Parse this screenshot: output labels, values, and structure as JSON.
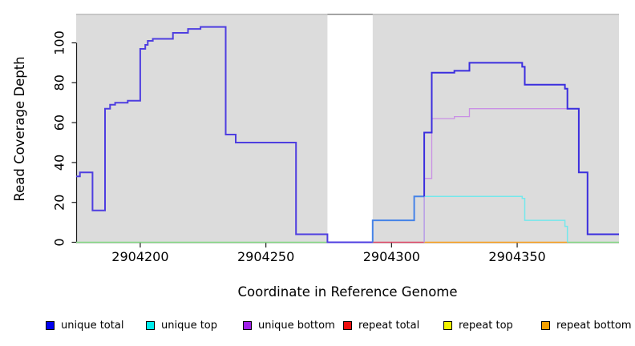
{
  "chart_data": {
    "type": "line",
    "subtype": "step-coverage-plot",
    "title": "",
    "xlabel": "Coordinate in Reference Genome",
    "ylabel": "Read Coverage Depth",
    "xlim": [
      2904174.5,
      2904390.5
    ],
    "ylim": [
      0,
      114
    ],
    "x_ticks": [
      2904200,
      2904250,
      2904300,
      2904350
    ],
    "x_tick_labels": [
      "2904200",
      "2904250",
      "2904300",
      "2904350"
    ],
    "y_ticks": [
      0,
      20,
      40,
      60,
      80,
      100
    ],
    "y_tick_labels": [
      "0",
      "20",
      "40",
      "60",
      "80",
      "100"
    ],
    "grid": false,
    "plot_background": "#dcdcdc",
    "gap_region": {
      "x_start": 2904274.5,
      "x_end": 2904292.5,
      "color": "#ffffff",
      "note": "white vertical band, no gray background"
    },
    "series": [
      {
        "name": "zero-coverage overlap left (appears green)",
        "color": "#85d985",
        "width": 1.5,
        "points": [
          [
            2904174.5,
            0
          ]
        ],
        "end_x": 2904274.5
      },
      {
        "name": "zero-coverage overlap right (appears green)",
        "color": "#85d985",
        "width": 1.5,
        "points": [
          [
            2904370,
            0
          ]
        ],
        "end_x": 2904390.5
      },
      {
        "name": "repeat total",
        "color": "#e04868",
        "width": 1.4,
        "points": [
          [
            2904292.5,
            0
          ]
        ],
        "end_x": 2904313
      },
      {
        "name": "repeat bottom",
        "color": "#fba01e",
        "width": 1.6,
        "points": [
          [
            2904313,
            0
          ]
        ],
        "end_x": 2904370
      },
      {
        "name": "unique top",
        "color": "#74e8ec",
        "width": 1.5,
        "points": [
          [
            2904313,
            0
          ],
          [
            2904313,
            23
          ],
          [
            2904352,
            22
          ],
          [
            2904353,
            11
          ],
          [
            2904369,
            8
          ],
          [
            2904370,
            0
          ]
        ],
        "end_x": 2904370
      },
      {
        "name": "unique bottom",
        "color": "#c98fe5",
        "width": 1.3,
        "points": [
          [
            2904313,
            0
          ],
          [
            2904313,
            32
          ],
          [
            2904316,
            62
          ],
          [
            2904325,
            63
          ],
          [
            2904331,
            67
          ]
        ],
        "end_x": 2904374.5
      },
      {
        "name": "unique total (left of gap)",
        "color": "#4e3ee0",
        "width": 2,
        "points": [
          [
            2904174.5,
            33
          ],
          [
            2904176,
            35
          ],
          [
            2904181,
            16
          ],
          [
            2904186,
            67
          ],
          [
            2904188,
            69
          ],
          [
            2904190,
            70
          ],
          [
            2904195,
            71
          ],
          [
            2904200,
            97
          ],
          [
            2904202,
            99
          ],
          [
            2904203,
            101
          ],
          [
            2904205,
            102
          ],
          [
            2904213,
            105
          ],
          [
            2904219,
            107
          ],
          [
            2904224,
            108
          ],
          [
            2904234,
            54
          ],
          [
            2904238,
            50
          ],
          [
            2904262,
            4
          ],
          [
            2904274.5,
            0
          ]
        ],
        "end_x": 2904292.5
      },
      {
        "name": "unique total (gap exit)",
        "color": "#4583e8",
        "width": 2,
        "points": [
          [
            2904292.5,
            0
          ],
          [
            2904292.5,
            11
          ],
          [
            2904309,
            23
          ]
        ],
        "end_x": 2904313
      },
      {
        "name": "unique total (right of gap)",
        "color": "#3b2ede",
        "width": 2,
        "points": [
          [
            2904313,
            23
          ],
          [
            2904313,
            55
          ],
          [
            2904316,
            85
          ],
          [
            2904325,
            86
          ],
          [
            2904331,
            90
          ],
          [
            2904352,
            88
          ],
          [
            2904353,
            79
          ],
          [
            2904369,
            77
          ],
          [
            2904370,
            67
          ],
          [
            2904374.5,
            35
          ],
          [
            2904378,
            4
          ]
        ],
        "end_x": 2904390.5
      }
    ],
    "legend": {
      "position": "bottom",
      "items": [
        {
          "label": "unique total",
          "color": "#0000f0"
        },
        {
          "label": "unique top",
          "color": "#00eded"
        },
        {
          "label": "unique bottom",
          "color": "#a020e8"
        },
        {
          "label": "repeat total",
          "color": "#ee0f0f"
        },
        {
          "label": "repeat top",
          "color": "#f2f200"
        },
        {
          "label": "repeat bottom",
          "color": "#f5a000"
        }
      ]
    }
  }
}
